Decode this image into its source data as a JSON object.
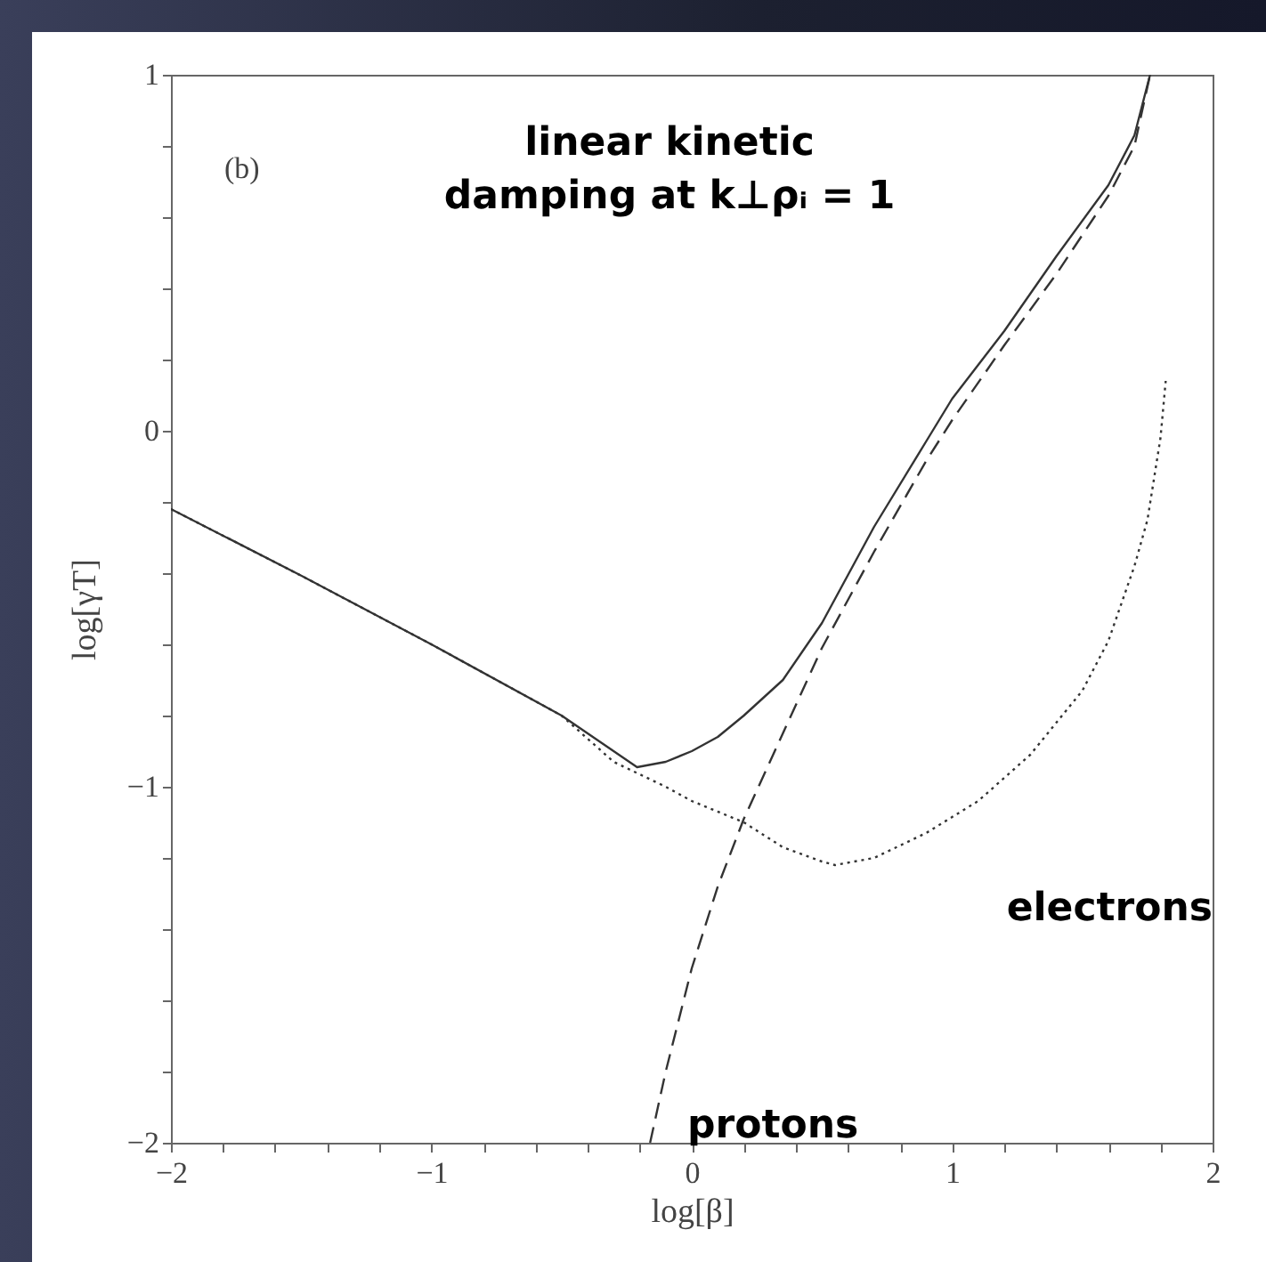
{
  "chart_data": {
    "type": "line",
    "title": "linear kinetic\ndamping at k⊥ρᵢ = 1",
    "xlabel": "log[β]",
    "ylabel": "log[γT]",
    "annotations": [
      "(b)"
    ],
    "series": [
      {
        "color": "#333333",
        "line_style": "solid",
        "x": [
          -2,
          -1.5,
          -1,
          -0.5,
          -0.3,
          -0.21,
          -0.1,
          0,
          0.1,
          0.2,
          0.35,
          0.5,
          0.7,
          0.9,
          1.0,
          1.2,
          1.4,
          1.6,
          1.7,
          1.76
        ],
        "values": [
          -0.22,
          -0.407,
          -0.6,
          -0.8,
          -0.9,
          -0.945,
          -0.93,
          -0.9,
          -0.86,
          -0.8,
          -0.7,
          -0.54,
          -0.27,
          -0.03,
          0.09,
          0.28,
          0.49,
          0.69,
          0.83,
          1.0
        ]
      },
      {
        "name": "electrons",
        "color": "#333333",
        "line_style": "dotted",
        "x": [
          -2,
          -1.5,
          -1,
          -0.5,
          -0.3,
          -0.1,
          0,
          0.2,
          0.35,
          0.5,
          0.55,
          0.7,
          0.9,
          1.1,
          1.3,
          1.5,
          1.6,
          1.7,
          1.75,
          1.8,
          1.82
        ],
        "values": [
          -0.22,
          -0.407,
          -0.6,
          -0.8,
          -0.93,
          -1.0,
          -1.04,
          -1.1,
          -1.17,
          -1.21,
          -1.22,
          -1.2,
          -1.13,
          -1.04,
          -0.91,
          -0.73,
          -0.59,
          -0.38,
          -0.25,
          -0.02,
          0.14
        ]
      },
      {
        "name": "protons",
        "color": "#333333",
        "line_style": "dashed",
        "x": [
          -0.16,
          -0.1,
          0,
          0.1,
          0.2,
          0.3,
          0.4,
          0.5,
          0.7,
          0.9,
          1.0,
          1.2,
          1.4,
          1.6,
          1.7,
          1.76
        ],
        "values": [
          -2,
          -1.8,
          -1.51,
          -1.28,
          -1.09,
          -0.93,
          -0.77,
          -0.61,
          -0.34,
          -0.085,
          0.03,
          0.24,
          0.44,
          0.66,
          0.8,
          1.0
        ]
      }
    ],
    "xlim": [
      -2,
      2
    ],
    "ylim": [
      -2,
      1
    ],
    "xticks": [
      {
        "value": -2,
        "label": "−2"
      },
      {
        "value": -1.8,
        "label": null
      },
      {
        "value": -1.6,
        "label": null
      },
      {
        "value": -1.4,
        "label": null
      },
      {
        "value": -1.2,
        "label": null
      },
      {
        "value": -1,
        "label": "−1"
      },
      {
        "value": -0.8,
        "label": null
      },
      {
        "value": -0.6,
        "label": null
      },
      {
        "value": -0.4,
        "label": null
      },
      {
        "value": -0.2,
        "label": null
      },
      0,
      {
        "value": 0.2,
        "label": null
      },
      {
        "value": 0.4,
        "label": null
      },
      {
        "value": 0.6,
        "label": null
      },
      {
        "value": 0.8,
        "label": null
      },
      1,
      {
        "value": 1.2,
        "label": null
      },
      {
        "value": 1.4,
        "label": null
      },
      {
        "value": 1.6,
        "label": null
      },
      {
        "value": 1.8,
        "label": null
      },
      2
    ],
    "yticks": [
      {
        "value": -2,
        "label": "−2"
      },
      {
        "value": -1.8,
        "label": null
      },
      {
        "value": -1.6,
        "label": null
      },
      {
        "value": -1.4,
        "label": null
      },
      {
        "value": -1.2,
        "label": null
      },
      {
        "value": -1,
        "label": "−1"
      },
      {
        "value": -0.8,
        "label": null
      },
      {
        "value": -0.6,
        "label": null
      },
      {
        "value": -0.4,
        "label": null
      },
      {
        "value": -0.2,
        "label": null
      },
      0,
      {
        "value": 0.2,
        "label": null
      },
      {
        "value": 0.4,
        "label": null
      },
      {
        "value": 0.6,
        "label": null
      },
      {
        "value": 0.8,
        "label": null
      },
      1
    ],
    "grid": false,
    "legend": false
  }
}
